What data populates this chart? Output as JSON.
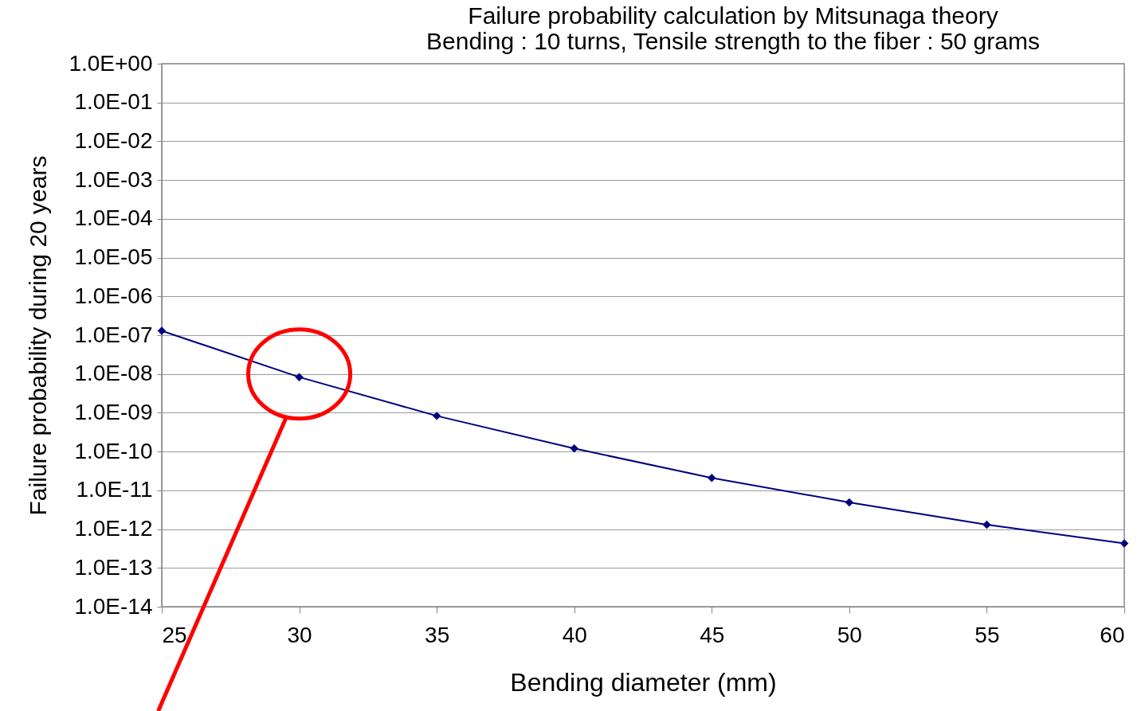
{
  "chart_data": {
    "type": "line",
    "title": "Failure probability calculation by Mitsunaga theory",
    "subtitle": "Bending : 10 turns,   Tensile strength to the fiber : 50 grams",
    "xlabel": "Bending diameter (mm)",
    "ylabel": "Failure probability during 20 years",
    "x": [
      25,
      30,
      35,
      40,
      45,
      50,
      55,
      60
    ],
    "series": [
      {
        "color": "#000080",
        "values": [
          1.3e-07,
          8.3e-09,
          8.3e-10,
          1.2e-10,
          2.1e-11,
          4.9e-12,
          1.3e-12,
          4.3e-13
        ]
      }
    ],
    "xlim": [
      25,
      60
    ],
    "xticks": [
      25,
      30,
      35,
      40,
      45,
      50,
      55,
      60
    ],
    "ylim": [
      1e-14,
      1
    ],
    "log": "y",
    "yticks": [
      {
        "value": 1,
        "label": "1.0E+00"
      },
      {
        "value": 0.1,
        "label": "1.0E-01"
      },
      {
        "value": 0.01,
        "label": "1.0E-02"
      },
      {
        "value": 0.001,
        "label": "1.0E-03"
      },
      {
        "value": 0.0001,
        "label": "1.0E-04"
      },
      {
        "value": 1e-05,
        "label": "1.0E-05"
      },
      {
        "value": 1e-06,
        "label": "1.0E-06"
      },
      {
        "value": 1e-07,
        "label": "1.0E-07"
      },
      {
        "value": 1e-08,
        "label": "1.0E-08"
      },
      {
        "value": 1e-09,
        "label": "1.0E-09"
      },
      {
        "value": 1e-10,
        "label": "1.0E-10"
      },
      {
        "value": 1e-11,
        "label": "1.0E-11"
      },
      {
        "value": 1e-12,
        "label": "1.0E-12"
      },
      {
        "value": 1e-13,
        "label": "1.0E-13"
      },
      {
        "value": 1e-14,
        "label": "1.0E-14"
      }
    ],
    "grid": "y",
    "marker": "diamond",
    "line_style": "solid"
  }
}
